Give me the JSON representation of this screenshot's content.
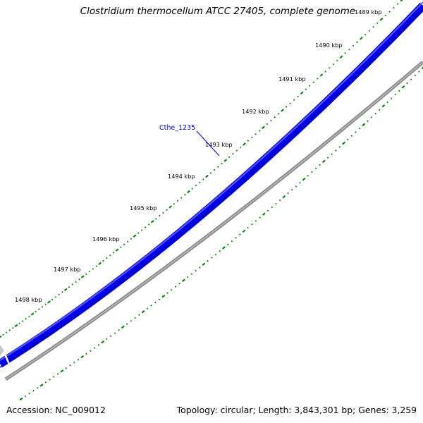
{
  "title": "Clostridium thermocellum ATCC 27405, complete genome",
  "footer": {
    "accession": "Accession: NC_009012",
    "summary": "Topology: circular; Length: 3,843,301 bp; Genes: 3,259"
  },
  "scale_ticks": [
    "1489 kbp",
    "1490 kbp",
    "1491 kbp",
    "1492 kbp",
    "1493 kbp",
    "1494 kbp",
    "1495 kbp",
    "1496 kbp",
    "1497 kbp",
    "1498 kbp"
  ],
  "gene_label": "Cthe_1235",
  "colors": {
    "cds_strand": "#0000ee",
    "cds_highlight": "#4040ff",
    "backbone": "#808080",
    "gc_ticks": "#007700",
    "gene_label": "#0000cc"
  }
}
